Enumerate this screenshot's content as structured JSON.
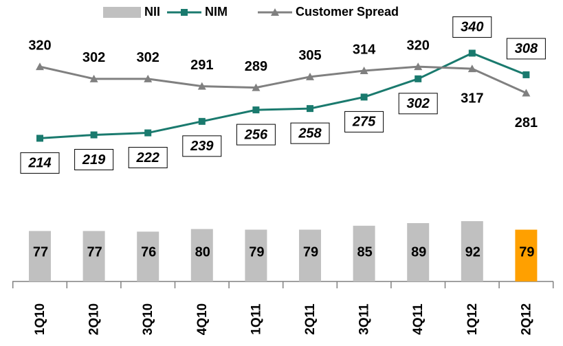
{
  "chart_data": {
    "type": "bar_line",
    "categories": [
      "1Q10",
      "2Q10",
      "3Q10",
      "4Q10",
      "1Q11",
      "2Q11",
      "3Q11",
      "4Q11",
      "1Q12",
      "2Q12"
    ],
    "series": [
      {
        "name": "NII",
        "type": "bar",
        "color": "#c0c0c0",
        "colors": [
          "#c0c0c0",
          "#c0c0c0",
          "#c0c0c0",
          "#c0c0c0",
          "#c0c0c0",
          "#c0c0c0",
          "#c0c0c0",
          "#c0c0c0",
          "#c0c0c0",
          "#ffa000"
        ],
        "values": [
          77,
          77,
          76,
          80,
          79,
          79,
          85,
          89,
          92,
          79
        ]
      },
      {
        "name": "NIM",
        "type": "line",
        "color": "#1a7a6e",
        "values": [
          214,
          219,
          222,
          239,
          256,
          258,
          275,
          302,
          340,
          308
        ]
      },
      {
        "name": "Customer Spread",
        "type": "line",
        "color": "#808080",
        "values": [
          320,
          302,
          302,
          291,
          289,
          305,
          314,
          320,
          317,
          281
        ]
      }
    ]
  }
}
